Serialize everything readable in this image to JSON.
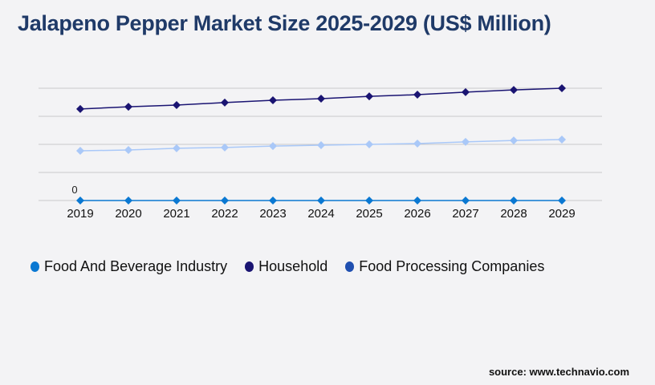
{
  "title": "Jalapeno Pepper Market Size 2025-2029 (US$ Million)",
  "source": "source: www.technavio.com",
  "chart_data": {
    "type": "line",
    "title": "Jalapeno Pepper Market Size 2025-2029 (US$ Million)",
    "x": [
      "2019",
      "2020",
      "2021",
      "2022",
      "2023",
      "2024",
      "2025",
      "2026",
      "2027",
      "2028",
      "2029"
    ],
    "ylim": [
      0,
      4
    ],
    "grid": true,
    "legend_placement": "bottom",
    "annotations": [
      "0"
    ],
    "series": [
      {
        "name": "Food And Beverage Industry",
        "color": "#0a78d2",
        "values": [
          0,
          0,
          0,
          0,
          0,
          0,
          0,
          0,
          0,
          0,
          0
        ]
      },
      {
        "name": "Household",
        "color": "#1a1472",
        "values": [
          3.26,
          3.34,
          3.4,
          3.49,
          3.57,
          3.63,
          3.71,
          3.77,
          3.86,
          3.94,
          4.0
        ]
      },
      {
        "name": "Food Processing Companies",
        "color": "#a9c8f8",
        "legend_color": "#1f4fb0",
        "values": [
          1.77,
          1.8,
          1.86,
          1.89,
          1.94,
          1.97,
          2.0,
          2.03,
          2.09,
          2.14,
          2.17
        ]
      }
    ]
  }
}
